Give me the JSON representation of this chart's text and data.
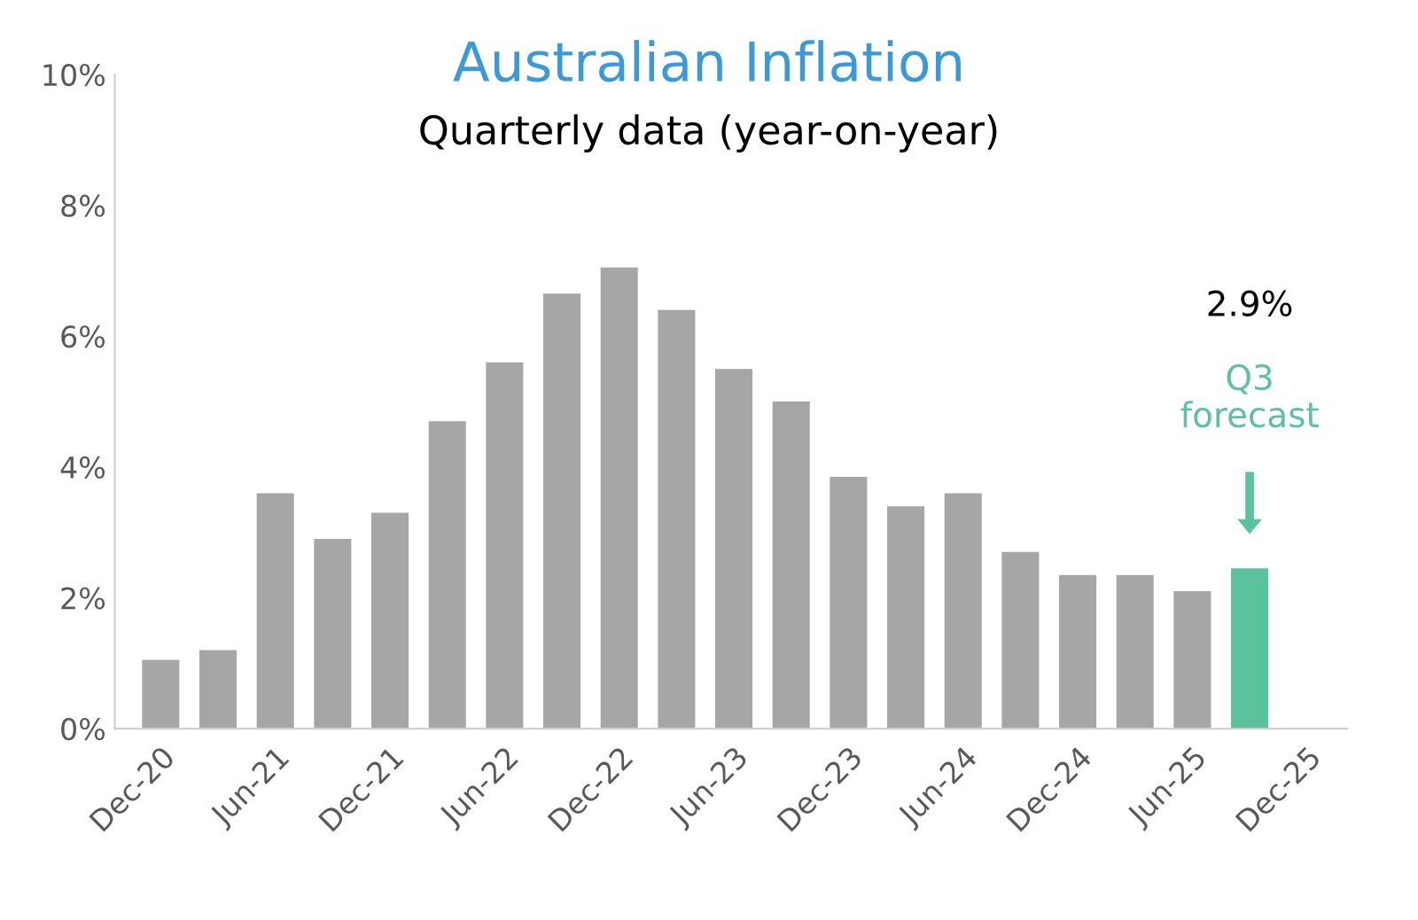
{
  "chart_data": {
    "type": "bar",
    "title": "Australian Inflation",
    "subtitle": "Quarterly data (year-on-year)",
    "categories": [
      "Dec-20",
      null,
      "Jun-21",
      null,
      "Dec-21",
      null,
      "Jun-22",
      null,
      "Dec-22",
      null,
      "Jun-23",
      null,
      "Dec-23",
      null,
      "Jun-24",
      null,
      "Dec-24",
      null,
      "Jun-25",
      null,
      "Dec-25"
    ],
    "values": [
      1.05,
      1.2,
      3.6,
      2.9,
      3.3,
      4.7,
      5.6,
      6.65,
      7.05,
      6.4,
      5.5,
      5.0,
      3.85,
      3.4,
      3.6,
      2.7,
      2.35,
      2.35,
      2.1,
      2.45,
      null
    ],
    "colors": [
      "#a6a6a6",
      "#a6a6a6",
      "#a6a6a6",
      "#a6a6a6",
      "#a6a6a6",
      "#a6a6a6",
      "#a6a6a6",
      "#a6a6a6",
      "#a6a6a6",
      "#a6a6a6",
      "#a6a6a6",
      "#a6a6a6",
      "#a6a6a6",
      "#a6a6a6",
      "#a6a6a6",
      "#a6a6a6",
      "#a6a6a6",
      "#a6a6a6",
      "#a6a6a6",
      "#5bc29e",
      "#a6a6a6"
    ],
    "ylim": [
      0,
      10
    ],
    "yticks": [
      {
        "value": 0,
        "label": "0%"
      },
      {
        "value": 2,
        "label": "2%"
      },
      {
        "value": 4,
        "label": "4%"
      },
      {
        "value": 6,
        "label": "6%"
      },
      {
        "value": 8,
        "label": "8%"
      },
      {
        "value": 10,
        "label": "10%"
      }
    ],
    "annotations": [
      "2.9%",
      "Q3\nforecast"
    ],
    "grid": false,
    "legend": false
  }
}
